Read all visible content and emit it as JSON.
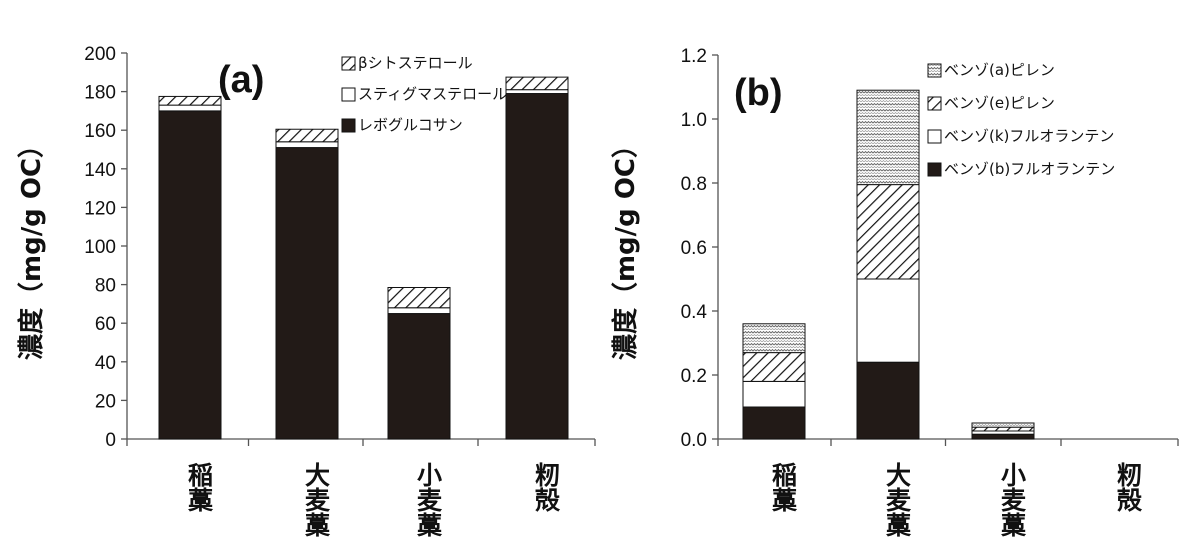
{
  "chart_data": [
    {
      "type": "bar",
      "stacked": true,
      "panel_label": "(a)",
      "ylabel": "濃度（mg/g OC）",
      "ylim": [
        0,
        200
      ],
      "yticks": [
        "0",
        "20",
        "40",
        "60",
        "80",
        "100",
        "120",
        "140",
        "160",
        "180",
        "200"
      ],
      "categories": [
        "稲藁",
        "大麦藁",
        "小麦藁",
        "籾殻"
      ],
      "legend_position": "top-right",
      "series": [
        {
          "name": "レボグルコサン",
          "fill": "solid",
          "values": [
            170,
            151,
            65,
            179
          ]
        },
        {
          "name": "スティグマステロール",
          "fill": "white",
          "values": [
            3,
            3,
            3,
            2
          ]
        },
        {
          "name": "βシトステロール",
          "fill": "hatch",
          "values": [
            4.5,
            6.5,
            10.5,
            6.5
          ]
        }
      ],
      "legend_order": [
        2,
        1,
        0
      ]
    },
    {
      "type": "bar",
      "stacked": true,
      "panel_label": "(b)",
      "ylabel": "濃度（mg/g OC）",
      "ylim": [
        0,
        1.2
      ],
      "yticks": [
        "0.0",
        "0.2",
        "0.4",
        "0.6",
        "0.8",
        "1.0",
        "1.2"
      ],
      "categories": [
        "稲藁",
        "大麦藁",
        "小麦藁",
        "籾殻"
      ],
      "legend_position": "top-right",
      "series": [
        {
          "name": "ベンゾ(b)フルオランテン",
          "fill": "solid",
          "values": [
            0.1,
            0.24,
            0.015,
            0
          ]
        },
        {
          "name": "ベンゾ(k)フルオランテン",
          "fill": "white",
          "values": [
            0.08,
            0.26,
            0.01,
            0
          ]
        },
        {
          "name": "ベンゾ(e)ピレン",
          "fill": "hatch",
          "values": [
            0.09,
            0.295,
            0.012,
            0
          ]
        },
        {
          "name": "ベンゾ(a)ピレン",
          "fill": "dots",
          "values": [
            0.09,
            0.295,
            0.013,
            0
          ]
        }
      ],
      "legend_order": [
        3,
        2,
        1,
        0
      ]
    }
  ]
}
